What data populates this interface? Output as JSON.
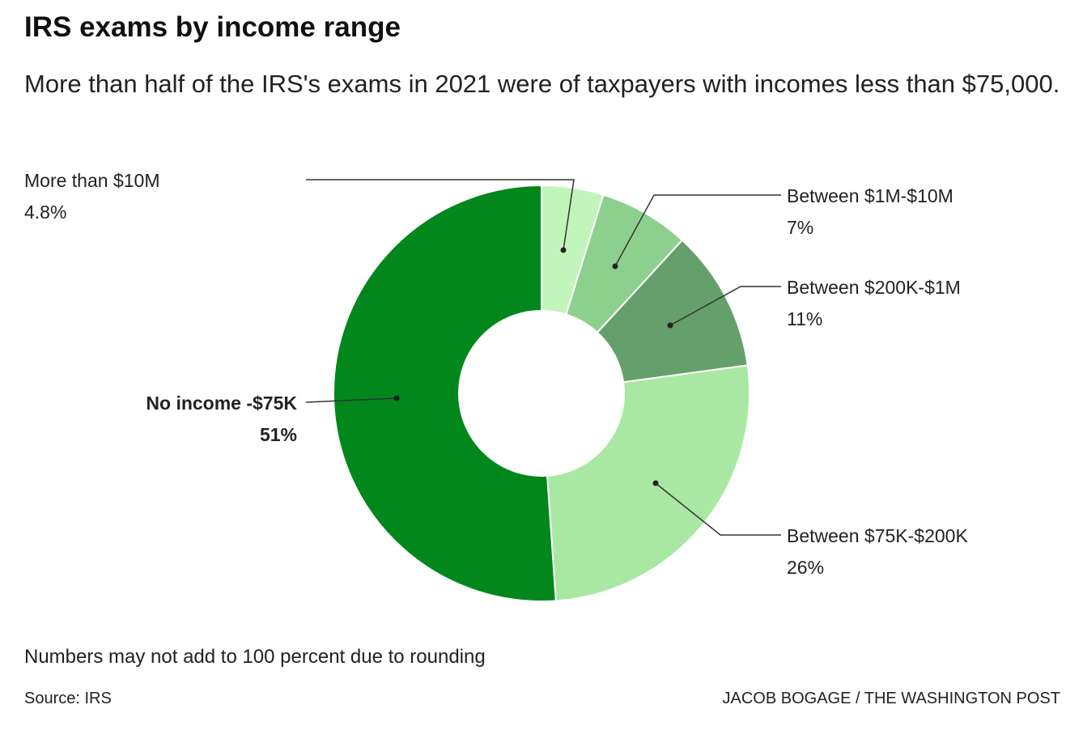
{
  "title": "IRS exams by income range",
  "subtitle": "More than half of the IRS's exams in 2021 were of taxpayers with incomes less than $75,000.",
  "note": "Numbers may not add to 100 percent due to rounding",
  "source": "Source: IRS",
  "credit": "JACOB BOGAGE / THE WASHINGTON POST",
  "chart_data": {
    "type": "pie",
    "style": "donut",
    "title": "IRS exams by income range",
    "order": "clockwise from top",
    "slices": [
      {
        "label": "More than $10M",
        "value": 4.8,
        "display": "4.8%",
        "color": "#c2f5bb",
        "highlight": false
      },
      {
        "label": "Between $1M-$10M",
        "value": 7,
        "display": "7%",
        "color": "#8dd08d",
        "highlight": false
      },
      {
        "label": "Between $200K-$1M",
        "value": 11,
        "display": "11%",
        "color": "#65a06c",
        "highlight": false
      },
      {
        "label": "Between $75K-$200K",
        "value": 26,
        "display": "26%",
        "color": "#a9e8a2",
        "highlight": false
      },
      {
        "label": "No income -$75K",
        "value": 51,
        "display": "51%",
        "color": "#02871c",
        "highlight": true
      }
    ]
  }
}
